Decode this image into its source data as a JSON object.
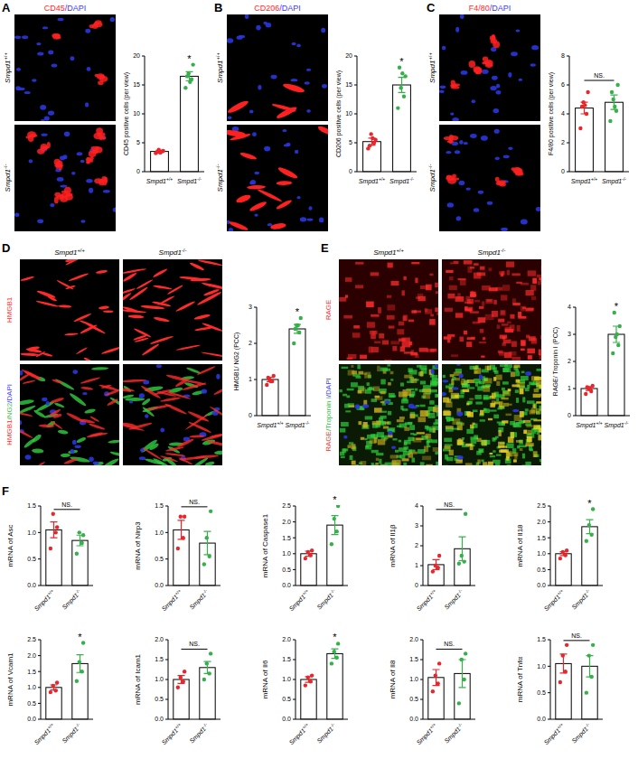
{
  "panels": [
    {
      "letter": "A",
      "stain": [
        {
          "text": "CD45",
          "color": "#ff2a2a"
        },
        {
          "text": "/DAPI",
          "color": "#3a3aff"
        }
      ],
      "rows": [
        "Smpd1+/+",
        "Smpd1-/-"
      ]
    },
    {
      "letter": "B",
      "stain": [
        {
          "text": "CD206",
          "color": "#ff2a2a"
        },
        {
          "text": "/DAPI",
          "color": "#3a3aff"
        }
      ],
      "rows": [
        "Smpd1+/+",
        "Smpd1-/-"
      ]
    },
    {
      "letter": "C",
      "stain": [
        {
          "text": "F4/80",
          "color": "#ff2a2a"
        },
        {
          "text": "/DAPI",
          "color": "#3a3aff"
        }
      ],
      "rows": [
        "Smpd1+/+",
        "Smpd1-/-"
      ]
    },
    {
      "letter": "D",
      "columns": [
        "Smpd1+/+",
        "Smpd1-/-"
      ],
      "rows": [
        [
          {
            "text": "HMGB1",
            "color": "#ff2a2a"
          }
        ],
        [
          {
            "text": "HMGB1",
            "color": "#ff2a2a"
          },
          {
            "text": "/NG2",
            "color": "#2ebd3c"
          },
          {
            "text": "/DAPI",
            "color": "#3a3aff"
          }
        ]
      ]
    },
    {
      "letter": "E",
      "columns": [
        "Smpd1+/+",
        "Smpd1-/-"
      ],
      "rows": [
        [
          {
            "text": "RAGE",
            "color": "#ff2a2a"
          }
        ],
        [
          {
            "text": "RAGE",
            "color": "#ff2a2a"
          },
          {
            "text": "/Troponin I",
            "color": "#2ebd3c"
          },
          {
            "text": "/DAPI",
            "color": "#3a3aff"
          }
        ]
      ]
    },
    {
      "letter": "F"
    }
  ],
  "chart_data": [
    {
      "type": "bar",
      "categories": [
        "Smpd1+/+",
        "Smpd1-/-"
      ],
      "values": [
        3.5,
        16.5
      ],
      "errors": [
        0.2,
        0.8
      ],
      "points": [
        [
          3.2,
          3.5,
          3.8,
          3.6,
          3.4,
          3.3
        ],
        [
          14.5,
          16,
          17,
          18.5,
          16.5,
          15.5
        ]
      ],
      "colors": [
        "#e8262b",
        "#36b04a"
      ],
      "ylabel": "CD45 positive cells (per view)",
      "ylim": [
        0,
        20
      ],
      "yticks": [
        0,
        5,
        10,
        15,
        20
      ],
      "annotation": "*"
    },
    {
      "type": "bar",
      "categories": [
        "Smpd1+/+",
        "Smpd1-/-"
      ],
      "values": [
        5.2,
        15
      ],
      "errors": [
        0.6,
        1.3
      ],
      "points": [
        [
          4.0,
          5.0,
          6.5,
          5.5,
          4.5,
          5.8
        ],
        [
          11,
          13,
          14.5,
          16.5,
          18,
          17
        ]
      ],
      "colors": [
        "#e8262b",
        "#36b04a"
      ],
      "ylabel": "CD206 positive cells (per view)",
      "ylim": [
        0,
        20
      ],
      "yticks": [
        0,
        5,
        10,
        15,
        20
      ],
      "annotation": "*"
    },
    {
      "type": "bar",
      "categories": [
        "Smpd1+/+",
        "Smpd1-/-"
      ],
      "values": [
        4.4,
        4.8
      ],
      "errors": [
        0.4,
        0.5
      ],
      "points": [
        [
          3.0,
          4.0,
          4.8,
          5.5,
          4.5,
          4.6
        ],
        [
          3.5,
          4.2,
          5.0,
          6.0,
          5.5,
          4.5
        ]
      ],
      "colors": [
        "#e8262b",
        "#36b04a"
      ],
      "ylabel": "F4/80 positive cells (per view)",
      "ylim": [
        0,
        8
      ],
      "yticks": [
        0,
        2,
        4,
        6,
        8
      ],
      "annotation": "NS."
    },
    {
      "type": "bar",
      "categories": [
        "Smpd1+/+",
        "Smpd1-/-"
      ],
      "values": [
        1.0,
        2.4
      ],
      "errors": [
        0.06,
        0.12
      ],
      "points": [
        [
          0.85,
          0.95,
          1.0,
          1.1,
          1.05,
          0.95
        ],
        [
          2.0,
          2.3,
          2.5,
          2.7,
          2.4,
          2.5
        ]
      ],
      "colors": [
        "#e8262b",
        "#36b04a"
      ],
      "ylabel": "HMGB1/ NG2 (PCC)",
      "ylim": [
        0,
        3
      ],
      "yticks": [
        0,
        1,
        2,
        3
      ],
      "annotation": "*"
    },
    {
      "type": "bar",
      "categories": [
        "Smpd1+/+",
        "Smpd1-/-"
      ],
      "values": [
        1.0,
        3.0
      ],
      "errors": [
        0.07,
        0.3
      ],
      "points": [
        [
          0.8,
          0.9,
          1.0,
          1.1,
          1.05,
          1.0
        ],
        [
          2.3,
          2.6,
          2.9,
          3.3,
          3.8,
          3.0
        ]
      ],
      "colors": [
        "#e8262b",
        "#36b04a"
      ],
      "ylabel": "RAGE/ Troponin I (PCC)",
      "ylim": [
        0,
        4
      ],
      "yticks": [
        0,
        1,
        2,
        3,
        4
      ],
      "annotation": "*"
    },
    {
      "type": "bar",
      "categories": [
        "Smpd1+/+",
        "Smpd1-/-"
      ],
      "values": [
        1.05,
        0.85
      ],
      "errors": [
        0.15,
        0.1
      ],
      "points": [
        [
          0.7,
          1.0,
          1.35,
          1.1
        ],
        [
          0.6,
          0.8,
          1.0,
          0.95
        ]
      ],
      "colors": [
        "#e8262b",
        "#36b04a"
      ],
      "ylabel": "mRNA of Asc",
      "ylim": [
        0,
        1.5
      ],
      "yticks": [
        {
          "value": 0,
          "label": "0.0"
        },
        {
          "value": 0.5,
          "label": "0.5"
        },
        {
          "value": 1,
          "label": "1.0"
        },
        {
          "value": 1.5,
          "label": "1.5"
        }
      ],
      "annotation": "NS."
    },
    {
      "type": "bar",
      "categories": [
        "Smpd1+/+",
        "Smpd1-/-"
      ],
      "values": [
        1.05,
        0.8
      ],
      "errors": [
        0.18,
        0.22
      ],
      "points": [
        [
          0.7,
          0.9,
          1.3,
          1.3
        ],
        [
          0.4,
          0.55,
          0.9,
          1.4
        ]
      ],
      "colors": [
        "#e8262b",
        "#36b04a"
      ],
      "ylabel": "mRNA of Nlrp3",
      "ylim": [
        0,
        1.5
      ],
      "yticks": [
        {
          "value": 0,
          "label": "0.0"
        },
        {
          "value": 0.5,
          "label": "0.5"
        },
        {
          "value": 1,
          "label": "1.0"
        },
        {
          "value": 1.5,
          "label": "1.5"
        }
      ],
      "annotation": "NS."
    },
    {
      "type": "bar",
      "categories": [
        "Smpd1+/+",
        "Smpd1-/-"
      ],
      "values": [
        1.0,
        1.9
      ],
      "errors": [
        0.08,
        0.3
      ],
      "points": [
        [
          0.85,
          0.95,
          1.05,
          1.1
        ],
        [
          1.3,
          1.7,
          2.1,
          2.5
        ]
      ],
      "colors": [
        "#e8262b",
        "#36b04a"
      ],
      "ylabel": "mRNA of Caspase1",
      "ylim": [
        0,
        2.5
      ],
      "yticks": [
        {
          "value": 0,
          "label": "0.0"
        },
        {
          "value": 0.5,
          "label": "0.5"
        },
        {
          "value": 1,
          "label": "1.0"
        },
        {
          "value": 1.5,
          "label": "1.5"
        },
        {
          "value": 2,
          "label": "2.0"
        },
        {
          "value": 2.5,
          "label": "2.5"
        }
      ],
      "annotation": "*"
    },
    {
      "type": "bar",
      "categories": [
        "Smpd1+/+",
        "Smpd1-/-"
      ],
      "values": [
        1.05,
        1.85
      ],
      "errors": [
        0.25,
        0.6
      ],
      "points": [
        [
          0.7,
          0.9,
          1.0,
          1.5
        ],
        [
          1.1,
          1.2,
          1.5,
          3.6
        ]
      ],
      "colors": [
        "#e8262b",
        "#36b04a"
      ],
      "ylabel": "mRNA of Il1β",
      "ylim": [
        0,
        4
      ],
      "yticks": [
        0,
        1,
        2,
        3,
        4
      ],
      "annotation": "NS."
    },
    {
      "type": "bar",
      "categories": [
        "Smpd1+/+",
        "Smpd1-/-"
      ],
      "values": [
        1.0,
        1.85
      ],
      "errors": [
        0.06,
        0.22
      ],
      "points": [
        [
          0.85,
          0.95,
          1.05,
          1.1
        ],
        [
          1.4,
          1.6,
          1.9,
          2.4
        ]
      ],
      "colors": [
        "#e8262b",
        "#36b04a"
      ],
      "ylabel": "mRNA of Il18",
      "ylim": [
        0,
        2.5
      ],
      "yticks": [
        {
          "value": 0,
          "label": "0.0"
        },
        {
          "value": 0.5,
          "label": "0.5"
        },
        {
          "value": 1,
          "label": "1.0"
        },
        {
          "value": 1.5,
          "label": "1.5"
        },
        {
          "value": 2,
          "label": "2.0"
        },
        {
          "value": 2.5,
          "label": "2.5"
        }
      ],
      "annotation": "*"
    },
    {
      "type": "bar",
      "categories": [
        "Smpd1+/+",
        "Smpd1-/-"
      ],
      "values": [
        1.0,
        1.75
      ],
      "errors": [
        0.08,
        0.28
      ],
      "points": [
        [
          0.85,
          0.9,
          1.05,
          1.15
        ],
        [
          1.2,
          1.5,
          1.8,
          2.4
        ]
      ],
      "colors": [
        "#e8262b",
        "#36b04a"
      ],
      "ylabel": "mRNA of Vcam1",
      "ylim": [
        0,
        2.5
      ],
      "yticks": [
        {
          "value": 0,
          "label": "0.0"
        },
        {
          "value": 0.5,
          "label": "0.5"
        },
        {
          "value": 1,
          "label": "1.0"
        },
        {
          "value": 1.5,
          "label": "1.5"
        },
        {
          "value": 2,
          "label": "2.0"
        },
        {
          "value": 2.5,
          "label": "2.5"
        }
      ],
      "annotation": "*"
    },
    {
      "type": "bar",
      "categories": [
        "Smpd1+/+",
        "Smpd1-/-"
      ],
      "values": [
        1.0,
        1.3
      ],
      "errors": [
        0.1,
        0.15
      ],
      "points": [
        [
          0.8,
          0.95,
          1.05,
          1.2
        ],
        [
          1.0,
          1.15,
          1.4,
          1.65
        ]
      ],
      "colors": [
        "#e8262b",
        "#36b04a"
      ],
      "ylabel": "mRNA of Icam1",
      "ylim": [
        0,
        2
      ],
      "yticks": [
        {
          "value": 0,
          "label": "0.0"
        },
        {
          "value": 0.5,
          "label": "0.5"
        },
        {
          "value": 1,
          "label": "1.0"
        },
        {
          "value": 1.5,
          "label": "1.5"
        },
        {
          "value": 2,
          "label": "2.0"
        }
      ],
      "annotation": "NS."
    },
    {
      "type": "bar",
      "categories": [
        "Smpd1+/+",
        "Smpd1-/-"
      ],
      "values": [
        1.0,
        1.65
      ],
      "errors": [
        0.07,
        0.12
      ],
      "points": [
        [
          0.85,
          0.95,
          1.05,
          1.1
        ],
        [
          1.4,
          1.55,
          1.7,
          1.9
        ]
      ],
      "colors": [
        "#e8262b",
        "#36b04a"
      ],
      "ylabel": "mRNA of Il6",
      "ylim": [
        0,
        2
      ],
      "yticks": [
        {
          "value": 0,
          "label": "0.0"
        },
        {
          "value": 0.5,
          "label": "0.5"
        },
        {
          "value": 1,
          "label": "1.0"
        },
        {
          "value": 1.5,
          "label": "1.5"
        },
        {
          "value": 2,
          "label": "2.0"
        }
      ],
      "annotation": "*"
    },
    {
      "type": "bar",
      "categories": [
        "Smpd1+/+",
        "Smpd1-/-"
      ],
      "values": [
        1.05,
        1.15
      ],
      "errors": [
        0.2,
        0.35
      ],
      "points": [
        [
          0.7,
          0.9,
          1.1,
          1.4
        ],
        [
          0.4,
          1.0,
          1.5,
          1.65
        ]
      ],
      "colors": [
        "#e8262b",
        "#36b04a"
      ],
      "ylabel": "mRNA of Il8",
      "ylim": [
        0,
        2
      ],
      "yticks": [
        {
          "value": 0,
          "label": "0.0"
        },
        {
          "value": 0.5,
          "label": "0.5"
        },
        {
          "value": 1,
          "label": "1.0"
        },
        {
          "value": 1.5,
          "label": "1.5"
        },
        {
          "value": 2,
          "label": "2.0"
        }
      ],
      "annotation": "NS."
    },
    {
      "type": "bar",
      "categories": [
        "Smpd1+/+",
        "Smpd1-/-"
      ],
      "values": [
        1.05,
        1.0
      ],
      "errors": [
        0.18,
        0.2
      ],
      "points": [
        [
          0.7,
          0.9,
          1.2,
          1.4
        ],
        [
          0.5,
          0.8,
          1.2,
          1.4
        ]
      ],
      "colors": [
        "#e8262b",
        "#36b04a"
      ],
      "ylabel": "mRNA of Tnfα",
      "ylim": [
        0,
        1.5
      ],
      "yticks": [
        {
          "value": 0,
          "label": "0.0"
        },
        {
          "value": 0.5,
          "label": "0.5"
        },
        {
          "value": 1,
          "label": "1.0"
        },
        {
          "value": 1.5,
          "label": "1.5"
        }
      ],
      "annotation": "NS."
    }
  ]
}
